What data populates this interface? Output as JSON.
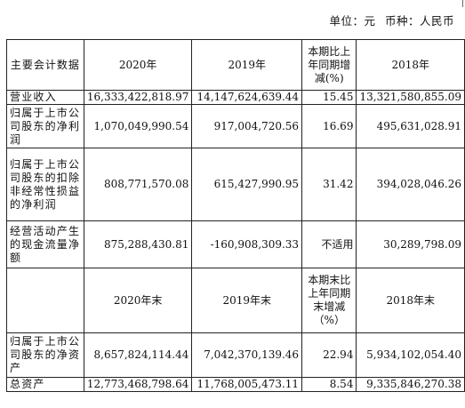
{
  "unit": {
    "unit_text": "单位：元",
    "currency_text": "币种：人民币"
  },
  "table": {
    "header1": [
      "主要会计数据",
      "2020年",
      "2019年",
      "本期比上年同期增减(%)",
      "2018年"
    ],
    "rows1": [
      [
        "营业收入",
        "16,333,422,818.97",
        "14,147,624,639.44",
        "15.45",
        "13,321,580,855.09"
      ],
      [
        "归属于上市公司股东的净利润",
        "1,070,049,990.54",
        "917,004,720.56",
        "16.69",
        "495,631,028.91"
      ],
      [
        "归属于上市公司股东的扣除非经常性损益的净利润",
        "808,771,570.08",
        "615,427,990.95",
        "31.42",
        "394,028,046.26"
      ],
      [
        "经营活动产生的现金流量净额",
        "875,288,430.81",
        "-160,908,309.33",
        "不适用",
        "30,289,798.09"
      ]
    ],
    "header2": [
      "",
      "2020年末",
      "2019年末",
      "本期末比上年同期末增减（%）",
      "2018年末"
    ],
    "rows2": [
      [
        "归属于上市公司股东的净资产",
        "8,657,824,114.44",
        "7,042,370,139.46",
        "22.94",
        "5,934,102,054.40"
      ],
      [
        "总资产",
        "12,773,468,798.64",
        "11,768,005,473.11",
        "8.54",
        "9,335,846,270.38"
      ]
    ]
  }
}
